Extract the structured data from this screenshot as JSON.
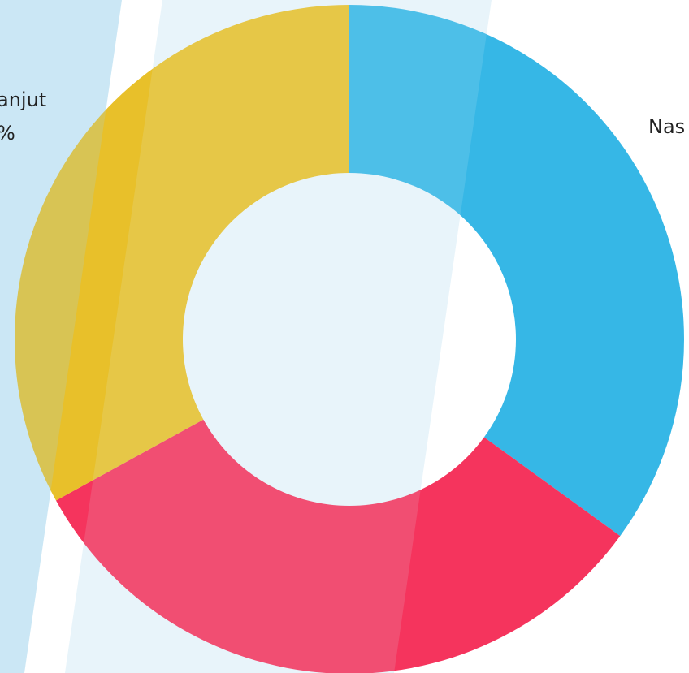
{
  "chart_data": {
    "type": "donut",
    "categories": [
      "Nas",
      null,
      "anjut"
    ],
    "values": [
      35,
      32,
      33
    ],
    "colors": [
      "#36b7e6",
      "#f5345d",
      "#e8c02a"
    ],
    "annotations": [
      "%"
    ]
  }
}
